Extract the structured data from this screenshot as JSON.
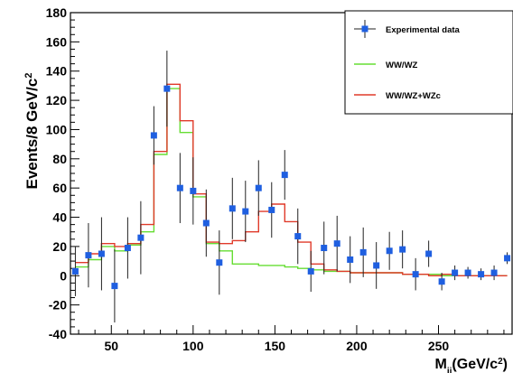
{
  "chart_data": {
    "type": "scatter",
    "xlabel": {
      "main": "M",
      "sub": "jj",
      "unit_open": "(GeV/c",
      "sup": "2",
      "unit_close": ")"
    },
    "ylabel": {
      "main": "Events/8 GeV/c",
      "sup": "2"
    },
    "xlim": [
      25,
      295
    ],
    "ylim": [
      -40,
      180
    ],
    "x_ticks": [
      50,
      100,
      150,
      200,
      250
    ],
    "y_ticks": [
      -40,
      -20,
      0,
      20,
      40,
      60,
      80,
      100,
      120,
      140,
      160,
      180
    ],
    "legend_position": "top-right",
    "legend": [
      {
        "label": "Experimental data",
        "key": "data",
        "color": "#1f5fe0"
      },
      {
        "label": "WW/WZ",
        "key": "wwwz",
        "color": "#66dd33"
      },
      {
        "label": "WW/WZ+WZc",
        "key": "wwwzc",
        "color": "#e03a2a"
      }
    ],
    "bin_edges": [
      28,
      36,
      44,
      52,
      60,
      68,
      76,
      84,
      92,
      100,
      108,
      116,
      124,
      132,
      140,
      148,
      156,
      164,
      172,
      180,
      188,
      196,
      204,
      212,
      220,
      228,
      236,
      244,
      252,
      260,
      268,
      276,
      284,
      292
    ],
    "series": [
      {
        "name": "Experimental data",
        "color": "#1f5fe0",
        "x": [
          28,
          36,
          44,
          52,
          60,
          68,
          76,
          84,
          92,
          100,
          108,
          116,
          124,
          132,
          140,
          148,
          156,
          164,
          172,
          180,
          188,
          196,
          204,
          212,
          220,
          228,
          236,
          244,
          252,
          260,
          268,
          276,
          284,
          292
        ],
        "y": [
          3,
          14,
          15,
          -7,
          19,
          26,
          96,
          128,
          60,
          58,
          36,
          9,
          46,
          44,
          60,
          45,
          69,
          27,
          3,
          19,
          22,
          11,
          16,
          7,
          17,
          18,
          1,
          15,
          -4,
          2,
          2,
          1,
          2,
          12
        ],
        "yerr": [
          17,
          22,
          25,
          25,
          21,
          25,
          20,
          26,
          24,
          23,
          23,
          22,
          21,
          21,
          19,
          19,
          17,
          19,
          14,
          18,
          19,
          16,
          17,
          16,
          13,
          13,
          11,
          9,
          6,
          5,
          4,
          4,
          5,
          4
        ]
      },
      {
        "name": "WW/WZ",
        "color": "#66dd33",
        "values": [
          6,
          11,
          20,
          17,
          21,
          30,
          83,
          128,
          98,
          54,
          22,
          17,
          8,
          8,
          7,
          7,
          6,
          5,
          4,
          3,
          3,
          2,
          2,
          2,
          2,
          1,
          1,
          1,
          0,
          0,
          0,
          0,
          0
        ]
      },
      {
        "name": "WW/WZ+WZc",
        "color": "#e03a2a",
        "values": [
          9,
          15,
          22,
          20,
          22,
          35,
          85,
          131,
          106,
          56,
          23,
          22,
          24,
          30,
          44,
          49,
          37,
          23,
          8,
          4,
          3,
          2,
          2,
          2,
          2,
          1,
          1,
          0,
          1,
          0,
          0,
          0,
          0
        ]
      }
    ]
  }
}
